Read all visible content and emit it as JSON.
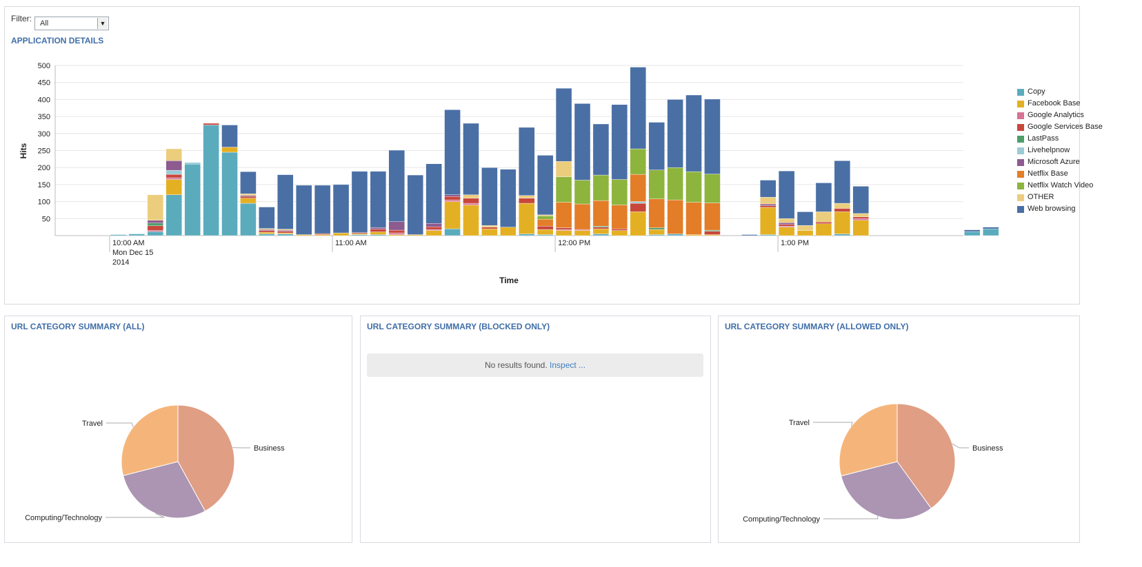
{
  "filter": {
    "label": "Filter:",
    "value": "All",
    "arrow": "▼"
  },
  "app_panel": {
    "title": "APPLICATION DETAILS"
  },
  "url_all": {
    "title": "URL CATEGORY SUMMARY (ALL)"
  },
  "url_blocked": {
    "title": "URL CATEGORY SUMMARY (BLOCKED ONLY)",
    "empty_text": "No results found.",
    "inspect_link": "Inspect ..."
  },
  "url_allowed": {
    "title": "URL CATEGORY SUMMARY (ALLOWED ONLY)"
  },
  "chart_data": [
    {
      "type": "bar",
      "stacked": true,
      "xlabel": "Time",
      "ylabel": "Hits",
      "ylim": [
        0,
        500
      ],
      "yticks": [
        50,
        100,
        150,
        200,
        250,
        300,
        350,
        400,
        450,
        500
      ],
      "grid": true,
      "legend_position": "right",
      "time_ticks": [
        {
          "label": "10:00 AM",
          "sub": [
            "Mon Dec 15",
            "2014"
          ],
          "slot": 0
        },
        {
          "label": "11:00 AM",
          "sub": [],
          "slot": 12
        },
        {
          "label": "12:00 PM",
          "sub": [],
          "slot": 24
        },
        {
          "label": "1:00 PM",
          "sub": [],
          "slot": 36
        }
      ],
      "series": [
        {
          "name": "Copy",
          "color": "#5aacbd"
        },
        {
          "name": "Facebook Base",
          "color": "#e4b023"
        },
        {
          "name": "Google Analytics",
          "color": "#d67296"
        },
        {
          "name": "Google Services Base",
          "color": "#c8473b"
        },
        {
          "name": "LastPass",
          "color": "#4e9e6a"
        },
        {
          "name": "Livehelpnow",
          "color": "#9ccbd6"
        },
        {
          "name": "Microsoft Azure",
          "color": "#8d5b8f"
        },
        {
          "name": "Netflix Base",
          "color": "#e37d28"
        },
        {
          "name": "Netflix Watch Video",
          "color": "#8db43d"
        },
        {
          "name": "OTHER",
          "color": "#ebcd7d"
        },
        {
          "name": "Web browsing",
          "color": "#4a6fa5"
        }
      ],
      "bars": [
        {
          "slot": 0,
          "values": [
            3,
            0,
            0,
            0,
            0,
            0,
            0,
            0,
            0,
            0,
            0
          ]
        },
        {
          "slot": 1,
          "values": [
            5,
            0,
            0,
            0,
            0,
            0,
            0,
            0,
            0,
            0,
            0
          ]
        },
        {
          "slot": 2,
          "values": [
            12,
            0,
            3,
            14,
            8,
            0,
            8,
            0,
            0,
            75,
            0
          ]
        },
        {
          "slot": 3,
          "values": [
            120,
            45,
            5,
            10,
            0,
            12,
            28,
            0,
            0,
            35,
            0
          ]
        },
        {
          "slot": 4,
          "values": [
            210,
            0,
            0,
            0,
            0,
            5,
            0,
            0,
            0,
            0,
            0
          ]
        },
        {
          "slot": 5,
          "values": [
            325,
            0,
            0,
            5,
            0,
            0,
            0,
            0,
            0,
            0,
            0
          ]
        },
        {
          "slot": 6,
          "values": [
            245,
            15,
            0,
            0,
            0,
            0,
            0,
            0,
            0,
            0,
            65
          ]
        },
        {
          "slot": 7,
          "values": [
            95,
            15,
            0,
            5,
            0,
            0,
            3,
            0,
            0,
            5,
            65
          ]
        },
        {
          "slot": 8,
          "values": [
            5,
            5,
            0,
            5,
            0,
            0,
            3,
            0,
            0,
            3,
            63
          ]
        },
        {
          "slot": 9,
          "values": [
            5,
            3,
            0,
            5,
            0,
            0,
            3,
            0,
            0,
            3,
            160
          ]
        },
        {
          "slot": 10,
          "values": [
            0,
            3,
            0,
            0,
            0,
            0,
            0,
            0,
            0,
            0,
            145
          ]
        },
        {
          "slot": 11,
          "values": [
            0,
            3,
            0,
            3,
            0,
            0,
            0,
            0,
            0,
            0,
            142
          ]
        },
        {
          "slot": 12,
          "values": [
            0,
            8,
            0,
            0,
            0,
            0,
            0,
            0,
            0,
            0,
            142
          ]
        },
        {
          "slot": 13,
          "values": [
            3,
            3,
            0,
            3,
            0,
            0,
            0,
            0,
            0,
            0,
            180
          ]
        },
        {
          "slot": 14,
          "values": [
            3,
            8,
            0,
            8,
            0,
            0,
            5,
            0,
            0,
            0,
            165
          ]
        },
        {
          "slot": 15,
          "values": [
            0,
            3,
            5,
            8,
            0,
            0,
            25,
            0,
            0,
            0,
            210
          ]
        },
        {
          "slot": 16,
          "values": [
            0,
            3,
            0,
            0,
            0,
            0,
            0,
            0,
            0,
            0,
            175
          ]
        },
        {
          "slot": 17,
          "values": [
            0,
            15,
            3,
            8,
            0,
            0,
            10,
            0,
            0,
            0,
            175
          ]
        },
        {
          "slot": 18,
          "values": [
            20,
            80,
            5,
            10,
            0,
            0,
            5,
            0,
            0,
            0,
            250
          ]
        },
        {
          "slot": 19,
          "values": [
            0,
            90,
            5,
            15,
            0,
            0,
            0,
            0,
            0,
            10,
            210
          ]
        },
        {
          "slot": 20,
          "values": [
            0,
            20,
            0,
            5,
            0,
            0,
            0,
            0,
            0,
            5,
            170
          ]
        },
        {
          "slot": 21,
          "values": [
            0,
            25,
            0,
            0,
            0,
            0,
            0,
            0,
            0,
            0,
            170
          ]
        },
        {
          "slot": 22,
          "values": [
            5,
            90,
            0,
            15,
            0,
            0,
            0,
            0,
            0,
            8,
            200
          ]
        },
        {
          "slot": 23,
          "values": [
            3,
            15,
            0,
            10,
            0,
            0,
            0,
            20,
            10,
            3,
            175
          ]
        },
        {
          "slot": 24,
          "values": [
            0,
            15,
            3,
            5,
            0,
            0,
            0,
            75,
            75,
            45,
            215
          ]
        },
        {
          "slot": 25,
          "values": [
            0,
            15,
            3,
            0,
            0,
            0,
            0,
            75,
            70,
            0,
            225
          ]
        },
        {
          "slot": 26,
          "values": [
            5,
            15,
            0,
            5,
            3,
            0,
            0,
            75,
            75,
            0,
            150
          ]
        },
        {
          "slot": 27,
          "values": [
            0,
            15,
            0,
            5,
            0,
            0,
            0,
            70,
            75,
            0,
            220
          ]
        },
        {
          "slot": 28,
          "values": [
            0,
            70,
            0,
            25,
            0,
            5,
            0,
            80,
            75,
            0,
            240
          ]
        },
        {
          "slot": 29,
          "values": [
            3,
            15,
            0,
            0,
            5,
            0,
            0,
            85,
            85,
            0,
            140
          ]
        },
        {
          "slot": 30,
          "values": [
            5,
            0,
            0,
            0,
            0,
            0,
            0,
            100,
            95,
            0,
            200
          ]
        },
        {
          "slot": 31,
          "values": [
            0,
            3,
            0,
            0,
            0,
            0,
            0,
            95,
            90,
            0,
            225
          ]
        },
        {
          "slot": 32,
          "values": [
            0,
            3,
            0,
            10,
            3,
            0,
            0,
            80,
            85,
            0,
            220
          ]
        },
        {
          "slot": 34,
          "values": [
            0,
            0,
            0,
            0,
            0,
            0,
            0,
            0,
            0,
            0,
            3
          ]
        },
        {
          "slot": 35,
          "values": [
            3,
            80,
            0,
            5,
            0,
            0,
            5,
            0,
            0,
            20,
            50
          ]
        },
        {
          "slot": 36,
          "values": [
            0,
            25,
            3,
            5,
            0,
            0,
            5,
            0,
            0,
            12,
            140
          ]
        },
        {
          "slot": 37,
          "values": [
            0,
            15,
            0,
            0,
            0,
            0,
            0,
            0,
            0,
            15,
            40
          ]
        },
        {
          "slot": 38,
          "values": [
            0,
            35,
            0,
            5,
            0,
            0,
            0,
            0,
            0,
            30,
            85
          ]
        },
        {
          "slot": 39,
          "values": [
            5,
            65,
            0,
            10,
            0,
            0,
            0,
            0,
            0,
            15,
            125
          ]
        },
        {
          "slot": 40,
          "values": [
            0,
            45,
            5,
            5,
            0,
            0,
            0,
            0,
            0,
            10,
            80
          ]
        },
        {
          "slot": 46,
          "values": [
            12,
            0,
            0,
            0,
            0,
            0,
            0,
            0,
            0,
            0,
            5
          ]
        },
        {
          "slot": 47,
          "values": [
            20,
            0,
            0,
            0,
            0,
            0,
            0,
            0,
            0,
            0,
            5
          ]
        }
      ]
    },
    {
      "type": "pie",
      "panel": "all",
      "slices": [
        {
          "label": "Business",
          "value": 42,
          "color": "#e09e85"
        },
        {
          "label": "Computing/Technology",
          "value": 29,
          "color": "#ab95b2"
        },
        {
          "label": "Travel",
          "value": 29,
          "color": "#f5b57a"
        }
      ]
    },
    {
      "type": "pie",
      "panel": "allowed",
      "slices": [
        {
          "label": "Business",
          "value": 40,
          "color": "#e09e85"
        },
        {
          "label": "Computing/Technology",
          "value": 31,
          "color": "#ab95b2"
        },
        {
          "label": "Travel",
          "value": 29,
          "color": "#f5b57a"
        }
      ]
    }
  ]
}
